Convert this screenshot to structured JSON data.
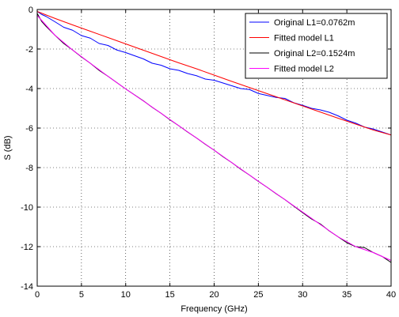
{
  "chart_data": {
    "type": "line",
    "title": "",
    "xlabel": "Frequency (GHz)",
    "ylabel": "S (dB)",
    "xlim": [
      0,
      40
    ],
    "ylim": [
      -14,
      0
    ],
    "xticks": [
      0,
      5,
      10,
      15,
      20,
      25,
      30,
      35,
      40
    ],
    "yticks": [
      0,
      -2,
      -4,
      -6,
      -8,
      -10,
      -12,
      -14
    ],
    "grid": true,
    "legend_position": "top-right",
    "series": [
      {
        "name": "Original L1=0.0762m",
        "color": "#0000ff",
        "x": [
          0,
          0.5,
          1,
          2,
          3,
          4,
          5,
          6,
          7,
          8,
          9,
          10,
          11,
          12,
          13,
          14,
          15,
          16,
          17,
          18,
          19,
          20,
          21,
          22,
          23,
          24,
          25,
          26,
          27,
          28,
          29,
          30,
          31,
          32,
          33,
          34,
          35,
          36,
          37,
          38,
          39,
          40
        ],
        "y": [
          -0.1,
          -0.25,
          -0.35,
          -0.62,
          -0.9,
          -1.05,
          -1.32,
          -1.45,
          -1.72,
          -1.82,
          -2.05,
          -2.18,
          -2.34,
          -2.5,
          -2.72,
          -2.82,
          -3.0,
          -3.08,
          -3.24,
          -3.35,
          -3.52,
          -3.58,
          -3.72,
          -3.86,
          -4.0,
          -4.05,
          -4.25,
          -4.35,
          -4.45,
          -4.5,
          -4.72,
          -4.85,
          -5.0,
          -5.08,
          -5.2,
          -5.38,
          -5.6,
          -5.75,
          -5.95,
          -6.05,
          -6.2,
          -6.35
        ]
      },
      {
        "name": "Fitted model L1",
        "color": "#ff0000",
        "x": [
          0,
          2,
          4,
          6,
          8,
          10,
          12,
          14,
          16,
          18,
          20,
          22,
          24,
          26,
          28,
          30,
          32,
          34,
          36,
          38,
          40
        ],
        "y": [
          -0.1,
          -0.45,
          -0.78,
          -1.1,
          -1.42,
          -1.74,
          -2.06,
          -2.38,
          -2.7,
          -3.0,
          -3.32,
          -3.64,
          -3.95,
          -4.26,
          -4.57,
          -4.88,
          -5.19,
          -5.5,
          -5.8,
          -6.1,
          -6.35
        ]
      },
      {
        "name": "Original L2=0.1524m",
        "color": "#000000",
        "x": [
          0,
          0.5,
          1,
          2,
          3,
          4,
          5,
          6,
          7,
          8,
          9,
          10,
          11,
          12,
          13,
          14,
          15,
          16,
          17,
          18,
          19,
          20,
          21,
          22,
          23,
          24,
          25,
          26,
          27,
          28,
          29,
          30,
          31,
          32,
          33,
          34,
          35,
          36,
          37,
          38,
          39,
          39.5,
          40
        ],
        "y": [
          -0.2,
          -0.6,
          -0.85,
          -1.3,
          -1.72,
          -2.05,
          -2.4,
          -2.72,
          -3.08,
          -3.38,
          -3.7,
          -4.02,
          -4.32,
          -4.62,
          -4.95,
          -5.25,
          -5.58,
          -5.88,
          -6.2,
          -6.5,
          -6.82,
          -7.12,
          -7.45,
          -7.75,
          -8.08,
          -8.38,
          -8.7,
          -9.0,
          -9.32,
          -9.62,
          -9.95,
          -10.28,
          -10.6,
          -10.85,
          -11.2,
          -11.5,
          -11.8,
          -12.0,
          -12.05,
          -12.3,
          -12.5,
          -12.65,
          -12.8
        ]
      },
      {
        "name": "Fitted model L2",
        "color": "#ff00ff",
        "x": [
          0,
          2,
          4,
          6,
          8,
          10,
          12,
          14,
          16,
          18,
          20,
          22,
          24,
          26,
          28,
          30,
          32,
          34,
          36,
          38,
          40
        ],
        "y": [
          -0.3,
          -1.3,
          -2.05,
          -2.72,
          -3.38,
          -4.02,
          -4.63,
          -5.25,
          -5.88,
          -6.5,
          -7.12,
          -7.75,
          -8.38,
          -9.0,
          -9.62,
          -10.25,
          -10.88,
          -11.5,
          -12.0,
          -12.3,
          -12.7
        ]
      }
    ]
  }
}
